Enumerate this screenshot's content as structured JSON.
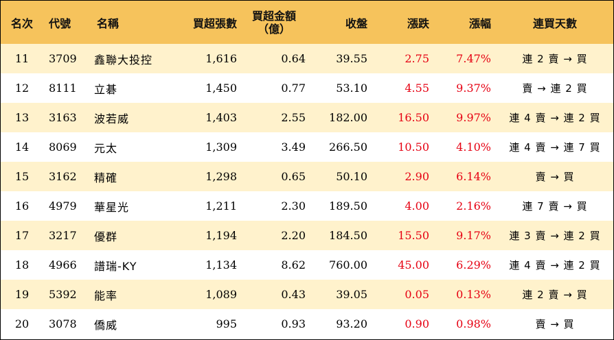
{
  "headers": {
    "rank": "名次",
    "code": "代號",
    "name": "名稱",
    "net_lots": "買超張數",
    "amount_line1": "買超金額",
    "amount_line2": "（億）",
    "close": "收盤",
    "change": "漲跌",
    "pct": "漲幅",
    "streak": "連買天數"
  },
  "rows": [
    {
      "rank": "11",
      "code": "3709",
      "name": "鑫聯大投控",
      "net_lots": "1,616",
      "amount": "0.64",
      "close": "39.55",
      "change": "2.75",
      "pct": "7.47%",
      "streak": "連 2 賣 → 買"
    },
    {
      "rank": "12",
      "code": "8111",
      "name": "立碁",
      "net_lots": "1,450",
      "amount": "0.77",
      "close": "53.10",
      "change": "4.55",
      "pct": "9.37%",
      "streak": "賣 → 連 2 買"
    },
    {
      "rank": "13",
      "code": "3163",
      "name": "波若威",
      "net_lots": "1,403",
      "amount": "2.55",
      "close": "182.00",
      "change": "16.50",
      "pct": "9.97%",
      "streak": "連 4 賣 → 連 2 買"
    },
    {
      "rank": "14",
      "code": "8069",
      "name": "元太",
      "net_lots": "1,309",
      "amount": "3.49",
      "close": "266.50",
      "change": "10.50",
      "pct": "4.10%",
      "streak": "連 4 賣 → 連 7 買"
    },
    {
      "rank": "15",
      "code": "3162",
      "name": "精確",
      "net_lots": "1,298",
      "amount": "0.65",
      "close": "50.10",
      "change": "2.90",
      "pct": "6.14%",
      "streak": "賣 → 買"
    },
    {
      "rank": "16",
      "code": "4979",
      "name": "華星光",
      "net_lots": "1,211",
      "amount": "2.30",
      "close": "189.50",
      "change": "4.00",
      "pct": "2.16%",
      "streak": "連 7 賣 → 買"
    },
    {
      "rank": "17",
      "code": "3217",
      "name": "優群",
      "net_lots": "1,194",
      "amount": "2.20",
      "close": "184.50",
      "change": "15.50",
      "pct": "9.17%",
      "streak": "連 3 賣 → 連 2 買"
    },
    {
      "rank": "18",
      "code": "4966",
      "name": "譜瑞-KY",
      "net_lots": "1,134",
      "amount": "8.62",
      "close": "760.00",
      "change": "45.00",
      "pct": "6.29%",
      "streak": "連 4 賣 → 連 2 買"
    },
    {
      "rank": "19",
      "code": "5392",
      "name": "能率",
      "net_lots": "1,089",
      "amount": "0.43",
      "close": "39.05",
      "change": "0.05",
      "pct": "0.13%",
      "streak": "連 2 賣 → 買"
    },
    {
      "rank": "20",
      "code": "3078",
      "name": "僑威",
      "net_lots": "995",
      "amount": "0.93",
      "close": "93.20",
      "change": "0.90",
      "pct": "0.98%",
      "streak": "賣 → 買"
    }
  ],
  "colors": {
    "header_bg": "#F6C35C",
    "odd_row_bg": "#FFF2CC",
    "even_row_bg": "#FFFFFF",
    "up_color": "#E60012"
  }
}
